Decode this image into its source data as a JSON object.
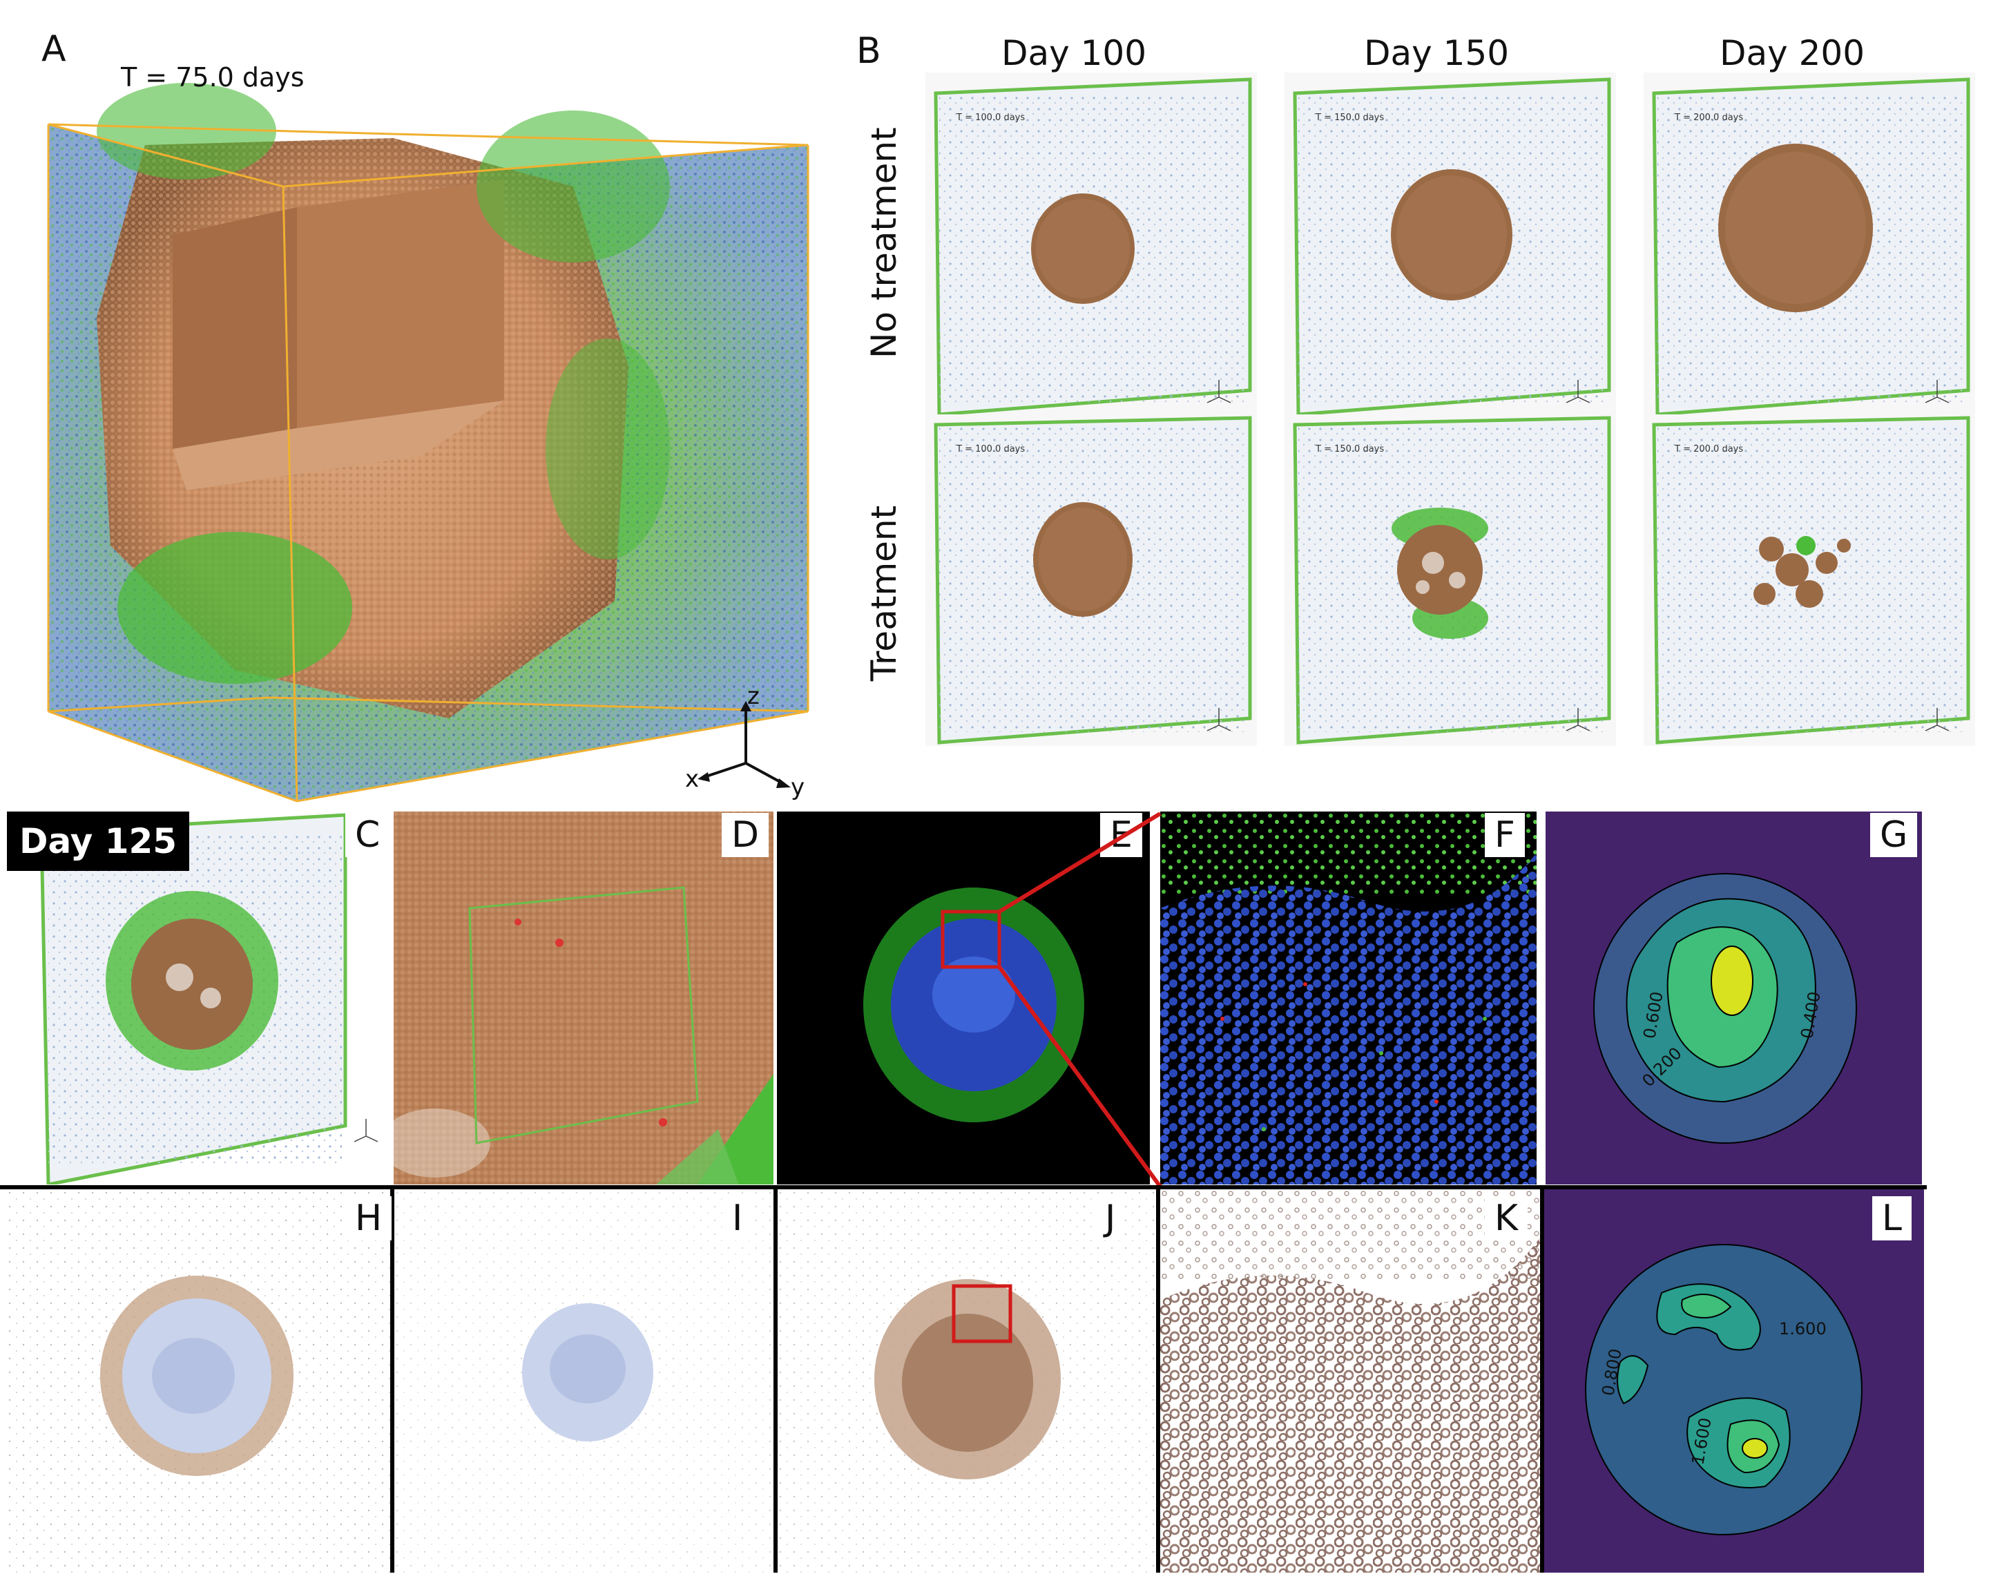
{
  "panels": {
    "A": {
      "letter": "A",
      "time_label": "T = 75.0 days",
      "axes": [
        "z",
        "x",
        "y"
      ]
    },
    "B": {
      "letter": "B",
      "columns": [
        "Day 100",
        "Day 150",
        "Day 200"
      ],
      "rows": [
        "No treatment",
        "Treatment"
      ],
      "time_labels": [
        "T = 100.0 days",
        "T = 150.0 days",
        "T = 200.0 days"
      ],
      "axes": [
        "z",
        "x",
        "y"
      ]
    },
    "C": {
      "letter": "C",
      "day_badge": "Day 125",
      "axes": [
        "z",
        "x",
        "y"
      ]
    },
    "D": {
      "letter": "D"
    },
    "E": {
      "letter": "E"
    },
    "F": {
      "letter": "F"
    },
    "G": {
      "letter": "G",
      "contour_labels": [
        "0.600",
        "0.400",
        "0.200"
      ]
    },
    "H": {
      "letter": "H"
    },
    "I": {
      "letter": "I"
    },
    "J": {
      "letter": "J"
    },
    "K": {
      "letter": "K"
    },
    "L": {
      "letter": "L",
      "contour_labels": [
        "1.600",
        "0.800",
        "1.600"
      ]
    }
  },
  "colors": {
    "tumor": "#c98a5e",
    "tumor_dark": "#9a6a45",
    "tcell": "#4cbb3a",
    "blue_cell": "#3a55c8",
    "box_orange": "#f0b030",
    "box_green": "#6abf4b",
    "zoom_red": "#d21a1a",
    "contour_bg": "#44236b"
  }
}
